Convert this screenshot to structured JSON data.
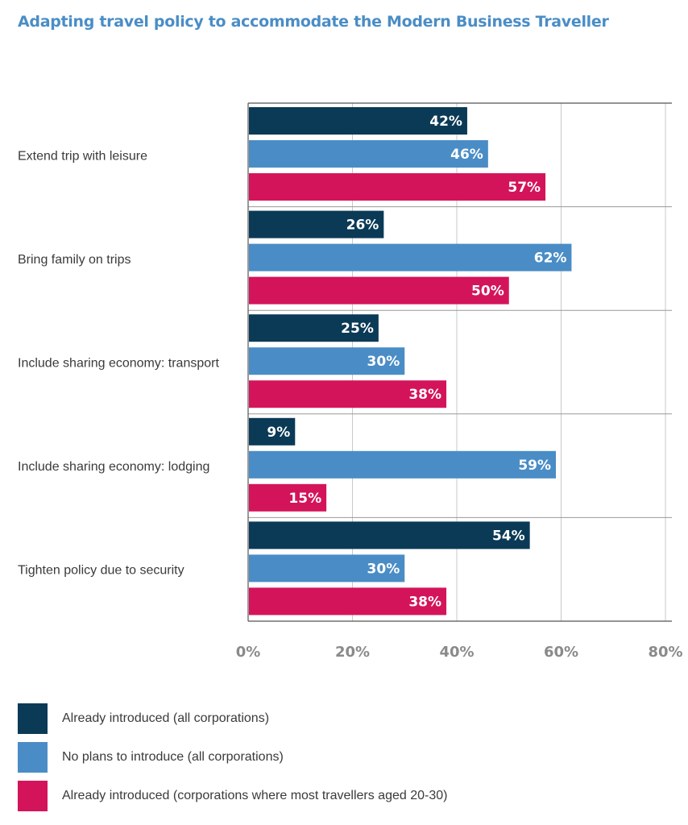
{
  "chart_data": {
    "type": "bar",
    "orientation": "horizontal",
    "title": "Adapting travel policy to accommodate the Modern Business Traveller",
    "categories": [
      "Extend trip with leisure",
      "Bring family on trips",
      "Include sharing economy: transport",
      "Include sharing economy: lodging",
      "Tighten policy due to security"
    ],
    "series": [
      {
        "name": "Already introduced (all corporations)",
        "color": "#0b3a56",
        "values": [
          42,
          26,
          25,
          9,
          54
        ],
        "labels": [
          "42%",
          "26%",
          "25%",
          "9%",
          "54%"
        ]
      },
      {
        "name": "No plans to introduce (all corporations)",
        "color": "#4a8dc6",
        "values": [
          46,
          62,
          30,
          59,
          30
        ],
        "labels": [
          "46%",
          "62%",
          "30%",
          "59%",
          "30%"
        ]
      },
      {
        "name": "Already introduced (corporations where most travellers aged 20-30)",
        "color": "#d4145a",
        "values": [
          57,
          50,
          38,
          15,
          38
        ],
        "labels": [
          "57%",
          "50%",
          "38%",
          "15%",
          "38%"
        ]
      }
    ],
    "xlim": [
      0,
      80
    ],
    "ticks": [
      0,
      20,
      40,
      60,
      80
    ],
    "tick_labels": [
      "0%",
      "20%",
      "40%",
      "60%",
      "80%"
    ],
    "grid": true,
    "legend_position": "bottom-left"
  }
}
